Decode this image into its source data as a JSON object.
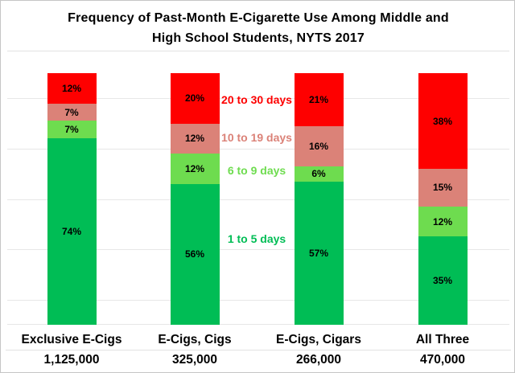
{
  "title": {
    "line1": "Frequency of Past-Month E-Cigarette Use Among Middle and",
    "line2": "High School Students, NYTS 2017"
  },
  "colors": {
    "green": "#00BD55",
    "light_green": "#6EDC4F",
    "salmon": "#DB8278",
    "red": "#FE0000",
    "gridline": "#E7E7E7",
    "separator": "#E2E2E2",
    "border": "#C6C6C6",
    "text": "#000000"
  },
  "chart_data": {
    "type": "bar",
    "subtype": "stacked-100-percent",
    "title": "Frequency of Past-Month E-Cigarette Use Among Middle and High School Students, NYTS 2017",
    "categories": [
      "Exclusive E-Cigs",
      "E-Cigs, Cigs",
      "E-Cigs, Cigars",
      "All Three"
    ],
    "category_totals": [
      "1,125,000",
      "325,000",
      "266,000",
      "470,000"
    ],
    "series": [
      {
        "name": "1 to 5 days",
        "color": "#00BD55",
        "values": [
          74,
          56,
          57,
          35
        ]
      },
      {
        "name": "6 to 9 days",
        "color": "#6EDC4F",
        "values": [
          7,
          12,
          6,
          12
        ]
      },
      {
        "name": "10 to 19 days",
        "color": "#DB8278",
        "values": [
          7,
          12,
          16,
          15
        ]
      },
      {
        "name": "20 to 30 days",
        "color": "#FE0000",
        "values": [
          12,
          20,
          21,
          38
        ]
      }
    ],
    "value_suffix": "%",
    "xlabel": "",
    "ylabel": "",
    "ylim": [
      0,
      100
    ],
    "grid": true,
    "gridlines_pct": [
      10,
      30,
      50,
      70,
      90
    ],
    "legend_position": "between-bars-2-and-3",
    "legend": [
      {
        "label": "20 to 30 days",
        "color": "#FE0000",
        "y_pct": 10.9
      },
      {
        "label": "10 to 19 days",
        "color": "#DB8278",
        "y_pct": 25.9
      },
      {
        "label": "6 to 9 days",
        "color": "#6EDC4F",
        "y_pct": 39.1
      },
      {
        "label": "1 to 5 days",
        "color": "#00BD55",
        "y_pct": 66.1
      }
    ]
  }
}
